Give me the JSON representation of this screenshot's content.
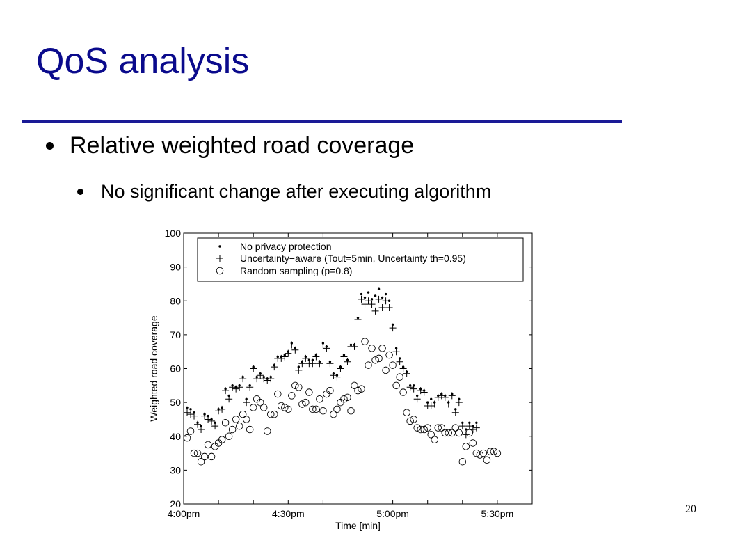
{
  "slide": {
    "title": "QoS analysis",
    "bullet1": "Relative weighted road coverage",
    "bullet2": "No significant change after executing algorithm",
    "page_number": "20",
    "colors": {
      "title": "#0a0a8c",
      "rule": "#1a1a96",
      "text": "#000000"
    }
  },
  "chart_data": {
    "type": "scatter",
    "xlabel": "Time [min]",
    "ylabel": "Weighted road coverage",
    "xlim": [
      "4:00pm",
      "5:40pm"
    ],
    "ylim": [
      20,
      100
    ],
    "x_ticks": [
      {
        "value": "4:00pm",
        "label": "4:00pm"
      },
      {
        "value": "4:30pm",
        "label": "4:30pm"
      },
      {
        "value": "5:00pm",
        "label": "5:00pm"
      },
      {
        "value": "5:30pm",
        "label": "5:30pm"
      }
    ],
    "y_ticks": [
      20,
      30,
      40,
      50,
      60,
      70,
      80,
      90,
      100
    ],
    "grid": false,
    "legend_position": "top-left",
    "series": [
      {
        "name": "No privacy protection",
        "marker": "dot",
        "points": [
          [
            "4:01pm",
            48.5
          ],
          [
            "4:02pm",
            48
          ],
          [
            "4:03pm",
            47
          ],
          [
            "4:04pm",
            44
          ],
          [
            "4:05pm",
            43
          ],
          [
            "4:06pm",
            46.5
          ],
          [
            "4:07pm",
            46
          ],
          [
            "4:08pm",
            45
          ],
          [
            "4:09pm",
            44
          ],
          [
            "4:10pm",
            48
          ],
          [
            "4:11pm",
            48.5
          ],
          [
            "4:12pm",
            54
          ],
          [
            "4:13pm",
            52
          ],
          [
            "4:14pm",
            55
          ],
          [
            "4:15pm",
            54.5
          ],
          [
            "4:16pm",
            55
          ],
          [
            "4:17pm",
            57.5
          ],
          [
            "4:18pm",
            51
          ],
          [
            "4:19pm",
            55
          ],
          [
            "4:20pm",
            60.5
          ],
          [
            "4:21pm",
            57.5
          ],
          [
            "4:22pm",
            58.5
          ],
          [
            "4:23pm",
            57.5
          ],
          [
            "4:24pm",
            57
          ],
          [
            "4:25pm",
            57.5
          ],
          [
            "4:26pm",
            61
          ],
          [
            "4:27pm",
            63.5
          ],
          [
            "4:28pm",
            63.5
          ],
          [
            "4:29pm",
            64
          ],
          [
            "4:30pm",
            65
          ],
          [
            "4:31pm",
            67.5
          ],
          [
            "4:32pm",
            66
          ],
          [
            "4:33pm",
            60.5
          ],
          [
            "4:34pm",
            62
          ],
          [
            "4:35pm",
            63.5
          ],
          [
            "4:36pm",
            62.5
          ],
          [
            "4:37pm",
            62.5
          ],
          [
            "4:38pm",
            64
          ],
          [
            "4:39pm",
            62
          ],
          [
            "4:40pm",
            67.5
          ],
          [
            "4:41pm",
            66.5
          ],
          [
            "4:42pm",
            62
          ],
          [
            "4:43pm",
            58.5
          ],
          [
            "4:44pm",
            58
          ],
          [
            "4:45pm",
            60.5
          ],
          [
            "4:46pm",
            64
          ],
          [
            "4:47pm",
            62.5
          ],
          [
            "4:48pm",
            67
          ],
          [
            "4:49pm",
            67
          ],
          [
            "4:50pm",
            75
          ],
          [
            "4:51pm",
            82
          ],
          [
            "4:52pm",
            81
          ],
          [
            "4:53pm",
            82.5
          ],
          [
            "4:54pm",
            80.5
          ],
          [
            "4:55pm",
            81.5
          ],
          [
            "4:56pm",
            83.5
          ],
          [
            "4:57pm",
            81
          ],
          [
            "4:58pm",
            82
          ],
          [
            "4:59pm",
            80
          ],
          [
            "5:00pm",
            73
          ],
          [
            "5:01pm",
            66
          ],
          [
            "5:02pm",
            63
          ],
          [
            "5:03pm",
            60.5
          ],
          [
            "5:04pm",
            59
          ],
          [
            "5:05pm",
            55
          ],
          [
            "5:06pm",
            55
          ],
          [
            "5:07pm",
            52
          ],
          [
            "5:08pm",
            54
          ],
          [
            "5:09pm",
            53.5
          ],
          [
            "5:10pm",
            50
          ],
          [
            "5:11pm",
            51
          ],
          [
            "5:12pm",
            50
          ],
          [
            "5:13pm",
            52
          ],
          [
            "5:14pm",
            52.5
          ],
          [
            "5:15pm",
            52
          ],
          [
            "5:16pm",
            50
          ],
          [
            "5:17pm",
            52.5
          ],
          [
            "5:18pm",
            48
          ],
          [
            "5:19pm",
            51
          ],
          [
            "5:20pm",
            44
          ],
          [
            "5:21pm",
            42
          ],
          [
            "5:22pm",
            44
          ],
          [
            "5:23pm",
            43
          ],
          [
            "5:24pm",
            44
          ]
        ]
      },
      {
        "name": "Uncertainty−aware (Tout=5min, Uncertainty th=0.95)",
        "marker": "plus",
        "points": [
          [
            "4:01pm",
            47
          ],
          [
            "4:02pm",
            46.5
          ],
          [
            "4:03pm",
            46
          ],
          [
            "4:04pm",
            43.5
          ],
          [
            "4:05pm",
            42
          ],
          [
            "4:06pm",
            46
          ],
          [
            "4:07pm",
            45
          ],
          [
            "4:08pm",
            44.5
          ],
          [
            "4:09pm",
            43
          ],
          [
            "4:10pm",
            47.5
          ],
          [
            "4:11pm",
            48
          ],
          [
            "4:12pm",
            53.5
          ],
          [
            "4:13pm",
            51
          ],
          [
            "4:14pm",
            54.5
          ],
          [
            "4:15pm",
            54
          ],
          [
            "4:16pm",
            54.5
          ],
          [
            "4:17pm",
            57
          ],
          [
            "4:18pm",
            50
          ],
          [
            "4:19pm",
            54.5
          ],
          [
            "4:20pm",
            60
          ],
          [
            "4:21pm",
            57
          ],
          [
            "4:22pm",
            58
          ],
          [
            "4:23pm",
            57
          ],
          [
            "4:24pm",
            56.5
          ],
          [
            "4:25pm",
            57
          ],
          [
            "4:26pm",
            60.5
          ],
          [
            "4:27pm",
            63
          ],
          [
            "4:28pm",
            63
          ],
          [
            "4:29pm",
            63.5
          ],
          [
            "4:30pm",
            64.5
          ],
          [
            "4:31pm",
            67
          ],
          [
            "4:32pm",
            65.5
          ],
          [
            "4:33pm",
            59.5
          ],
          [
            "4:34pm",
            61.5
          ],
          [
            "4:35pm",
            63
          ],
          [
            "4:36pm",
            61.5
          ],
          [
            "4:37pm",
            61.5
          ],
          [
            "4:38pm",
            63.5
          ],
          [
            "4:39pm",
            61.5
          ],
          [
            "4:40pm",
            67
          ],
          [
            "4:41pm",
            66
          ],
          [
            "4:42pm",
            61.5
          ],
          [
            "4:43pm",
            58
          ],
          [
            "4:44pm",
            57.5
          ],
          [
            "4:45pm",
            60
          ],
          [
            "4:46pm",
            63.5
          ],
          [
            "4:47pm",
            62
          ],
          [
            "4:48pm",
            66.5
          ],
          [
            "4:49pm",
            66.5
          ],
          [
            "4:50pm",
            74.5
          ],
          [
            "4:51pm",
            80.5
          ],
          [
            "4:52pm",
            79
          ],
          [
            "4:53pm",
            80
          ],
          [
            "4:54pm",
            79
          ],
          [
            "4:55pm",
            77
          ],
          [
            "4:56pm",
            80.5
          ],
          [
            "4:57pm",
            78
          ],
          [
            "4:58pm",
            80
          ],
          [
            "4:59pm",
            78
          ],
          [
            "5:00pm",
            72
          ],
          [
            "5:01pm",
            65
          ],
          [
            "5:02pm",
            62
          ],
          [
            "5:03pm",
            60
          ],
          [
            "5:04pm",
            58.5
          ],
          [
            "5:05pm",
            54.5
          ],
          [
            "5:06pm",
            54
          ],
          [
            "5:07pm",
            51
          ],
          [
            "5:08pm",
            53.5
          ],
          [
            "5:09pm",
            53
          ],
          [
            "5:10pm",
            49
          ],
          [
            "5:11pm",
            49
          ],
          [
            "5:12pm",
            49.5
          ],
          [
            "5:13pm",
            51.5
          ],
          [
            "5:14pm",
            52
          ],
          [
            "5:15pm",
            51.5
          ],
          [
            "5:16pm",
            49.5
          ],
          [
            "5:17pm",
            52
          ],
          [
            "5:18pm",
            47
          ],
          [
            "5:19pm",
            50
          ],
          [
            "5:20pm",
            43
          ],
          [
            "5:21pm",
            40.5
          ],
          [
            "5:22pm",
            43
          ],
          [
            "5:23pm",
            42
          ],
          [
            "5:24pm",
            42.5
          ]
        ]
      },
      {
        "name": "Random sampling (p=0.8)",
        "marker": "circle",
        "points": [
          [
            "4:01pm",
            39.5
          ],
          [
            "4:02pm",
            41.5
          ],
          [
            "4:03pm",
            35
          ],
          [
            "4:04pm",
            35
          ],
          [
            "4:05pm",
            32.5
          ],
          [
            "4:06pm",
            34
          ],
          [
            "4:07pm",
            37.5
          ],
          [
            "4:08pm",
            34
          ],
          [
            "4:09pm",
            37
          ],
          [
            "4:10pm",
            38
          ],
          [
            "4:11pm",
            39
          ],
          [
            "4:12pm",
            44
          ],
          [
            "4:13pm",
            40
          ],
          [
            "4:14pm",
            42
          ],
          [
            "4:15pm",
            45
          ],
          [
            "4:16pm",
            43
          ],
          [
            "4:17pm",
            46.5
          ],
          [
            "4:18pm",
            45
          ],
          [
            "4:19pm",
            42
          ],
          [
            "4:20pm",
            48.5
          ],
          [
            "4:21pm",
            51
          ],
          [
            "4:22pm",
            50
          ],
          [
            "4:23pm",
            48.5
          ],
          [
            "4:24pm",
            41.5
          ],
          [
            "4:25pm",
            46.5
          ],
          [
            "4:26pm",
            46.5
          ],
          [
            "4:27pm",
            52.5
          ],
          [
            "4:28pm",
            49
          ],
          [
            "4:29pm",
            48.5
          ],
          [
            "4:30pm",
            48
          ],
          [
            "4:31pm",
            52
          ],
          [
            "4:32pm",
            55
          ],
          [
            "4:33pm",
            54.5
          ],
          [
            "4:34pm",
            49.5
          ],
          [
            "4:35pm",
            50
          ],
          [
            "4:36pm",
            53
          ],
          [
            "4:37pm",
            48
          ],
          [
            "4:38pm",
            48
          ],
          [
            "4:39pm",
            51
          ],
          [
            "4:40pm",
            47.5
          ],
          [
            "4:41pm",
            52.5
          ],
          [
            "4:42pm",
            53.5
          ],
          [
            "4:43pm",
            46.5
          ],
          [
            "4:44pm",
            48
          ],
          [
            "4:45pm",
            50
          ],
          [
            "4:46pm",
            51
          ],
          [
            "4:47pm",
            51.5
          ],
          [
            "4:48pm",
            47.5
          ],
          [
            "4:49pm",
            55
          ],
          [
            "4:50pm",
            53.5
          ],
          [
            "4:51pm",
            54
          ],
          [
            "4:52pm",
            68
          ],
          [
            "4:53pm",
            61
          ],
          [
            "4:54pm",
            66
          ],
          [
            "4:55pm",
            62.5
          ],
          [
            "4:56pm",
            63
          ],
          [
            "4:57pm",
            66
          ],
          [
            "4:58pm",
            59.5
          ],
          [
            "4:59pm",
            64
          ],
          [
            "5:00pm",
            61
          ],
          [
            "5:01pm",
            55
          ],
          [
            "5:02pm",
            57.5
          ],
          [
            "5:03pm",
            53
          ],
          [
            "5:04pm",
            47
          ],
          [
            "5:05pm",
            44.5
          ],
          [
            "5:06pm",
            45
          ],
          [
            "5:07pm",
            42.5
          ],
          [
            "5:08pm",
            42
          ],
          [
            "5:09pm",
            42
          ],
          [
            "5:10pm",
            42.5
          ],
          [
            "5:11pm",
            40.5
          ],
          [
            "5:12pm",
            39
          ],
          [
            "5:13pm",
            42.5
          ],
          [
            "5:14pm",
            42.5
          ],
          [
            "5:15pm",
            41
          ],
          [
            "5:16pm",
            41
          ],
          [
            "5:17pm",
            41
          ],
          [
            "5:18pm",
            42.5
          ],
          [
            "5:19pm",
            41
          ],
          [
            "5:20pm",
            32.5
          ],
          [
            "5:21pm",
            37
          ],
          [
            "5:22pm",
            41
          ],
          [
            "5:23pm",
            38
          ],
          [
            "5:24pm",
            35
          ],
          [
            "5:25pm",
            34.5
          ],
          [
            "5:26pm",
            35
          ],
          [
            "5:27pm",
            33
          ],
          [
            "5:28pm",
            35.5
          ],
          [
            "5:29pm",
            35.5
          ],
          [
            "5:30pm",
            35
          ]
        ]
      }
    ]
  }
}
